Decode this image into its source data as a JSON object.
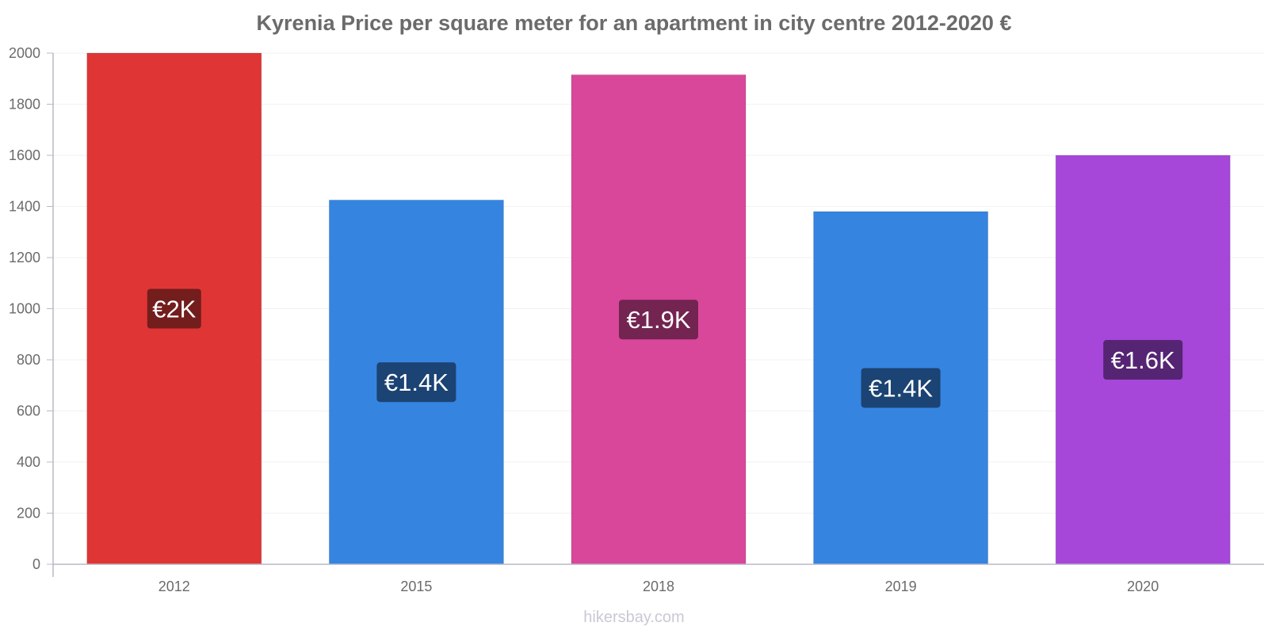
{
  "chart_data": {
    "type": "bar",
    "title": "Kyrenia Price per square meter for an apartment in city centre 2012-2020 €",
    "categories": [
      "2012",
      "2015",
      "2018",
      "2019",
      "2020"
    ],
    "values": [
      2000,
      1425,
      1915,
      1380,
      1600
    ],
    "data_labels": [
      "€2K",
      "€1.4K",
      "€1.9K",
      "€1.4K",
      "€1.6K"
    ],
    "bar_colors": [
      "#e03535",
      "#3584e0",
      "#d9479b",
      "#3584e0",
      "#a647d9"
    ],
    "label_bg_colors": [
      "#731d1d",
      "#1b4373",
      "#732450",
      "#1b4373",
      "#552473"
    ],
    "xlabel": "",
    "ylabel": "",
    "ylim": [
      0,
      2000
    ],
    "yticks": [
      0,
      200,
      400,
      600,
      800,
      1000,
      1200,
      1400,
      1600,
      1800,
      2000
    ],
    "grid": true,
    "legend": "none"
  },
  "watermark": "hikersbay.com"
}
